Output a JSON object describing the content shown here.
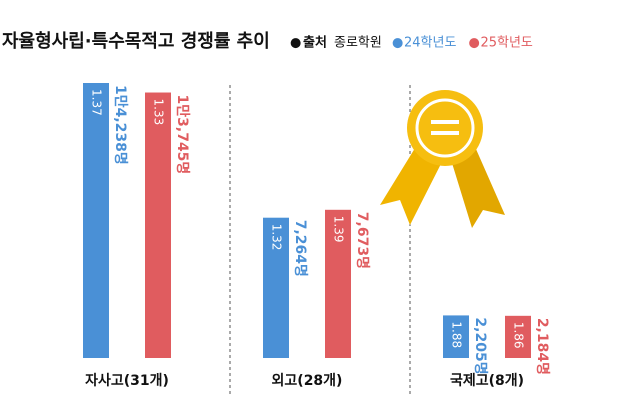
{
  "chart_data": {
    "type": "bar",
    "title": "자율형사립·특수목적고 경쟁률 추이",
    "source_label": "출처",
    "source": "종로학원",
    "legend_marker": "●",
    "categories": [
      "자사고(31개)",
      "외고(28개)",
      "국제고(8개)"
    ],
    "series": [
      {
        "name": "24학년도",
        "color": "#4a90d6",
        "values": [
          14238,
          7264,
          2205
        ],
        "value_labels": [
          "1만4,238명",
          "7,264명",
          "2,205명"
        ],
        "ratios": [
          "1.37",
          "1.32",
          "1.88"
        ]
      },
      {
        "name": "25학년도",
        "color": "#e05c5f",
        "values": [
          13745,
          7673,
          2184
        ],
        "value_labels": [
          "1만3,745명",
          "7,673명",
          "2,184명"
        ],
        "ratios": [
          "1.33",
          "1.39",
          "1.86"
        ]
      }
    ]
  }
}
